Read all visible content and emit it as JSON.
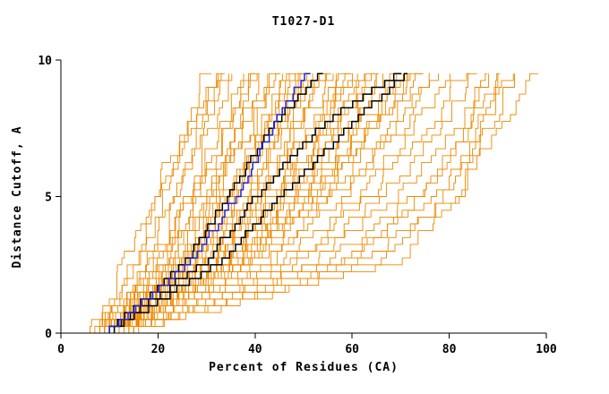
{
  "chart_data": {
    "type": "line",
    "title": "T1027-D1",
    "xlabel": "Percent of Residues (CA)",
    "ylabel": "Distance Cutoff, A",
    "xlim": [
      0,
      100
    ],
    "ylim": [
      0,
      10
    ],
    "x_ticks": [
      0,
      20,
      40,
      60,
      80,
      100
    ],
    "y_ticks": [
      0,
      5,
      10
    ],
    "grid": false,
    "legend": "none",
    "description": "Cumulative GDT-style plot: each staircase curve is one model, giving percent of CA residues under each distance cutoff",
    "control_y": [
      0,
      2.5,
      5,
      7.5,
      9.7
    ],
    "series": [
      {
        "name": "ensemble-models",
        "color": "#EE8800",
        "width": 0.9,
        "jitter": 3.2,
        "curves": [
          [
            6,
            14,
            19,
            26,
            35
          ],
          [
            7,
            15,
            20,
            27,
            33
          ],
          [
            8,
            16,
            21,
            26,
            30
          ],
          [
            9,
            18,
            23,
            28,
            33
          ],
          [
            8,
            19,
            25,
            30,
            34
          ],
          [
            10,
            20,
            26,
            31,
            36
          ],
          [
            9,
            21,
            27,
            33,
            38
          ],
          [
            10,
            22,
            28,
            34,
            39
          ],
          [
            8,
            20,
            28,
            35,
            40
          ],
          [
            11,
            23,
            30,
            36,
            41
          ],
          [
            9,
            22,
            30,
            37,
            42
          ],
          [
            10,
            24,
            31,
            38,
            43
          ],
          [
            12,
            25,
            32,
            39,
            44
          ],
          [
            9,
            23,
            32,
            40,
            45
          ],
          [
            10,
            26,
            34,
            41,
            46
          ],
          [
            11,
            25,
            34,
            42,
            47
          ],
          [
            10,
            27,
            35,
            42,
            48
          ],
          [
            12,
            26,
            36,
            43,
            49
          ],
          [
            9,
            25,
            35,
            44,
            50
          ],
          [
            11,
            28,
            37,
            45,
            51
          ],
          [
            10,
            27,
            38,
            46,
            52
          ],
          [
            12,
            29,
            39,
            46,
            53
          ],
          [
            11,
            28,
            38,
            47,
            54
          ],
          [
            10,
            30,
            40,
            48,
            55
          ],
          [
            13,
            31,
            41,
            49,
            56
          ],
          [
            11,
            29,
            41,
            50,
            57
          ],
          [
            12,
            32,
            42,
            51,
            58
          ],
          [
            10,
            30,
            42,
            52,
            59
          ],
          [
            13,
            33,
            44,
            53,
            60
          ],
          [
            11,
            31,
            43,
            53,
            61
          ],
          [
            12,
            34,
            45,
            54,
            62
          ],
          [
            10,
            32,
            45,
            55,
            63
          ],
          [
            13,
            35,
            47,
            56,
            64
          ],
          [
            11,
            33,
            46,
            57,
            65
          ],
          [
            12,
            36,
            48,
            58,
            66
          ],
          [
            14,
            34,
            48,
            59,
            67
          ],
          [
            11,
            35,
            49,
            60,
            68
          ],
          [
            13,
            37,
            50,
            61,
            69
          ],
          [
            12,
            36,
            51,
            62,
            70
          ],
          [
            14,
            38,
            52,
            63,
            71
          ],
          [
            11,
            37,
            52,
            64,
            72
          ],
          [
            13,
            39,
            54,
            65,
            73
          ],
          [
            12,
            38,
            54,
            66,
            74
          ],
          [
            14,
            40,
            55,
            67,
            75
          ],
          [
            12,
            42,
            57,
            69,
            77
          ],
          [
            13,
            44,
            59,
            71,
            79
          ],
          [
            14,
            46,
            62,
            73,
            81
          ],
          [
            12,
            48,
            64,
            76,
            84
          ],
          [
            15,
            50,
            67,
            79,
            86
          ],
          [
            13,
            52,
            70,
            82,
            89
          ],
          [
            14,
            55,
            74,
            85,
            92
          ],
          [
            15,
            58,
            78,
            88,
            95
          ],
          [
            16,
            62,
            82,
            91,
            98
          ],
          [
            13,
            60,
            75,
            83,
            88
          ],
          [
            14,
            65,
            80,
            86,
            90
          ],
          [
            15,
            70,
            82,
            88,
            93
          ]
        ]
      },
      {
        "name": "highlighted-models",
        "color": "#000000",
        "width": 1.5,
        "jitter": 1.0,
        "curves": [
          [
            10,
            26,
            35,
            44,
            55
          ],
          [
            10,
            30,
            41,
            54,
            72
          ],
          [
            11,
            33,
            46,
            60,
            73
          ]
        ]
      },
      {
        "name": "selected-model",
        "color": "#2222CC",
        "width": 1.5,
        "jitter": 1.0,
        "curves": [
          [
            10,
            27,
            37,
            44,
            52
          ]
        ]
      }
    ]
  }
}
